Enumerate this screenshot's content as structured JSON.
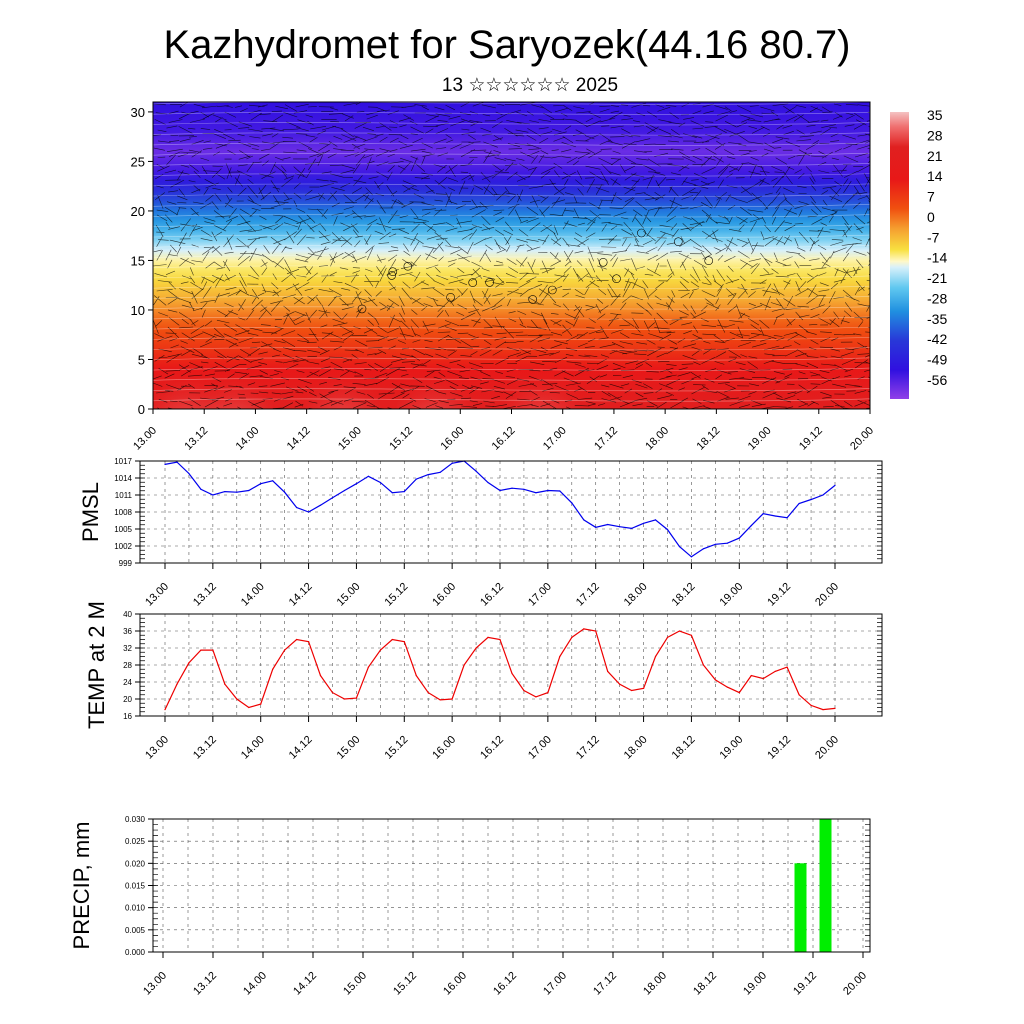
{
  "title": "Kazhydromet for Saryozek(44.16 80.7)",
  "subtitle": "13 ☆☆☆☆☆☆ 2025",
  "colors": {
    "pmsl_line": "#0000ee",
    "temp_line": "#ee0000",
    "precip_bar": "#00ee00",
    "axis": "#000000",
    "grid": "#555555"
  },
  "time_ticks": [
    "13.00",
    "13.12",
    "14.00",
    "14.12",
    "15.00",
    "15.12",
    "16.00",
    "16.12",
    "17.00",
    "17.12",
    "18.00",
    "18.12",
    "19.00",
    "19.12",
    "20.00"
  ],
  "chart_data": [
    {
      "type": "heatmap",
      "name": "vertical-section",
      "xlabel": "",
      "ylabel": "",
      "ylim": [
        0,
        31
      ],
      "y_ticks": [
        "0",
        "5",
        "10",
        "15",
        "20",
        "25",
        "30"
      ],
      "x_ticks": [
        "13.00",
        "13.12",
        "14.00",
        "14.12",
        "15.00",
        "15.12",
        "16.00",
        "16.12",
        "17.00",
        "17.12",
        "18.00",
        "18.12",
        "19.00",
        "19.12",
        "20.00"
      ],
      "colorbar_labels": [
        "35",
        "28",
        "21",
        "14",
        "7",
        "0",
        "-7",
        "-14",
        "-21",
        "-28",
        "-35",
        "-42",
        "-49",
        "-56"
      ],
      "colorbar_range": [
        -60,
        38
      ],
      "color_stops": [
        {
          "value": 38,
          "color": "#f4c2c2"
        },
        {
          "value": 33,
          "color": "#f07070"
        },
        {
          "value": 26,
          "color": "#e02020"
        },
        {
          "value": 15,
          "color": "#e81818"
        },
        {
          "value": 5,
          "color": "#f05010"
        },
        {
          "value": -2,
          "color": "#f5a030"
        },
        {
          "value": -9,
          "color": "#f8e040"
        },
        {
          "value": -13,
          "color": "#fff8c8"
        },
        {
          "value": -15,
          "color": "#d8f0fa"
        },
        {
          "value": -22,
          "color": "#60c8f0"
        },
        {
          "value": -30,
          "color": "#2090e0"
        },
        {
          "value": -40,
          "color": "#2838d8"
        },
        {
          "value": -50,
          "color": "#3010e0"
        },
        {
          "value": -60,
          "color": "#9040e8"
        }
      ],
      "temperature_profile": [
        {
          "height": 0,
          "value": 24
        },
        {
          "height": 3,
          "value": 18
        },
        {
          "height": 6,
          "value": 10
        },
        {
          "height": 9,
          "value": 3
        },
        {
          "height": 11,
          "value": -3
        },
        {
          "height": 13,
          "value": -8
        },
        {
          "height": 15,
          "value": -12
        },
        {
          "height": 16,
          "value": -15
        },
        {
          "height": 18,
          "value": -25
        },
        {
          "height": 20,
          "value": -33
        },
        {
          "height": 22,
          "value": -42
        },
        {
          "height": 24,
          "value": -52
        },
        {
          "height": 26,
          "value": -56
        },
        {
          "height": 28,
          "value": -52
        },
        {
          "height": 31,
          "value": -50
        }
      ],
      "surface_warm_peaks": [
        0.33,
        0.8,
        1.85,
        2.75,
        3.8
      ],
      "surface_warm_amplitude": 14
    },
    {
      "type": "line",
      "name": "PMSL",
      "ylabel": "PMSL",
      "xlabel": "",
      "ylim": [
        999,
        1017
      ],
      "y_ticks": [
        "999",
        "1002",
        "1005",
        "1008",
        "1011",
        "1014",
        "1017"
      ],
      "x_ticks": [
        "13.00",
        "13.12",
        "14.00",
        "14.12",
        "15.00",
        "15.12",
        "16.00",
        "16.12",
        "17.00",
        "17.12",
        "18.00",
        "18.12",
        "19.00",
        "19.12",
        "20.00"
      ],
      "x_days": [
        0,
        0.125,
        0.25,
        0.375,
        0.5,
        0.625,
        0.75,
        0.875,
        1,
        1.125,
        1.25,
        1.375,
        1.5,
        1.625,
        1.75,
        1.875,
        2,
        2.125,
        2.25,
        2.375,
        2.5,
        2.625,
        2.75,
        2.875,
        3,
        3.125,
        3.25,
        3.375,
        3.5,
        3.625,
        3.75,
        3.875,
        4,
        4.125,
        4.25,
        4.375,
        4.5,
        4.625,
        4.75,
        4.875,
        5,
        5.125,
        5.25,
        5.375,
        5.5,
        5.625,
        5.75,
        5.875,
        6,
        6.125,
        6.25,
        6.375,
        6.5,
        6.625,
        6.75,
        6.875,
        7
      ],
      "values": [
        1016.4,
        1016.8,
        1014.8,
        1012.0,
        1011.0,
        1011.6,
        1011.5,
        1011.8,
        1013.0,
        1013.5,
        1011.5,
        1008.8,
        1008.0,
        1009.2,
        1010.5,
        1011.8,
        1013.0,
        1014.3,
        1013.2,
        1011.4,
        1011.6,
        1013.8,
        1014.6,
        1015.0,
        1016.6,
        1017.0,
        1015.2,
        1013.2,
        1011.8,
        1012.2,
        1012.0,
        1011.4,
        1011.8,
        1011.7,
        1009.6,
        1006.6,
        1005.3,
        1005.8,
        1005.4,
        1005.1,
        1006.0,
        1006.6,
        1004.9,
        1001.9,
        1000.1,
        1001.5,
        1002.3,
        1002.5,
        1003.4,
        1005.6,
        1007.7,
        1007.3,
        1007.0,
        1009.5,
        1010.2,
        1011.0,
        1012.7
      ]
    },
    {
      "type": "line",
      "name": "TEMP at 2 M",
      "ylabel": "TEMP at 2 M",
      "xlabel": "",
      "ylim": [
        16,
        40
      ],
      "y_ticks": [
        "16",
        "20",
        "24",
        "28",
        "32",
        "36",
        "40"
      ],
      "x_ticks": [
        "13.00",
        "13.12",
        "14.00",
        "14.12",
        "15.00",
        "15.12",
        "16.00",
        "16.12",
        "17.00",
        "17.12",
        "18.00",
        "18.12",
        "19.00",
        "19.12",
        "20.00"
      ],
      "x_days": [
        0,
        0.125,
        0.25,
        0.375,
        0.5,
        0.625,
        0.75,
        0.875,
        1,
        1.125,
        1.25,
        1.375,
        1.5,
        1.625,
        1.75,
        1.875,
        2,
        2.125,
        2.25,
        2.375,
        2.5,
        2.625,
        2.75,
        2.875,
        3,
        3.125,
        3.25,
        3.375,
        3.5,
        3.625,
        3.75,
        3.875,
        4,
        4.125,
        4.25,
        4.375,
        4.5,
        4.625,
        4.75,
        4.875,
        5,
        5.125,
        5.25,
        5.375,
        5.5,
        5.625,
        5.75,
        5.875,
        6,
        6.125,
        6.25,
        6.375,
        6.5,
        6.625,
        6.75,
        6.875,
        7
      ],
      "values": [
        17.5,
        23.5,
        28.5,
        31.5,
        31.5,
        23.5,
        20.0,
        18.0,
        18.8,
        27.0,
        31.5,
        34.0,
        33.5,
        25.5,
        21.5,
        20.0,
        20.2,
        27.5,
        31.5,
        34.0,
        33.5,
        25.5,
        21.5,
        19.8,
        20.0,
        28.0,
        32.0,
        34.5,
        34.0,
        26.0,
        22.0,
        20.5,
        21.5,
        30.0,
        34.5,
        36.5,
        36.0,
        26.5,
        23.5,
        22.0,
        22.5,
        30.0,
        34.5,
        36.0,
        35.0,
        28.0,
        24.5,
        22.8,
        21.5,
        25.5,
        24.8,
        26.5,
        27.5,
        21.0,
        18.5,
        17.5,
        17.8
      ]
    },
    {
      "type": "bar",
      "name": "PRECIP, mm",
      "ylabel": "PRECIP, mm",
      "xlabel": "",
      "ylim": [
        0.0,
        0.03
      ],
      "y_ticks": [
        "0.000",
        "0.005",
        "0.010",
        "0.015",
        "0.020",
        "0.025",
        "0.030"
      ],
      "x_ticks": [
        "13.00",
        "13.12",
        "14.00",
        "14.12",
        "15.00",
        "15.12",
        "16.00",
        "16.12",
        "17.00",
        "17.12",
        "18.00",
        "18.12",
        "19.00",
        "19.12",
        "20.00"
      ],
      "bars": [
        {
          "x_day": 6.375,
          "value": 0.02
        },
        {
          "x_day": 6.625,
          "value": 0.03
        }
      ]
    }
  ]
}
